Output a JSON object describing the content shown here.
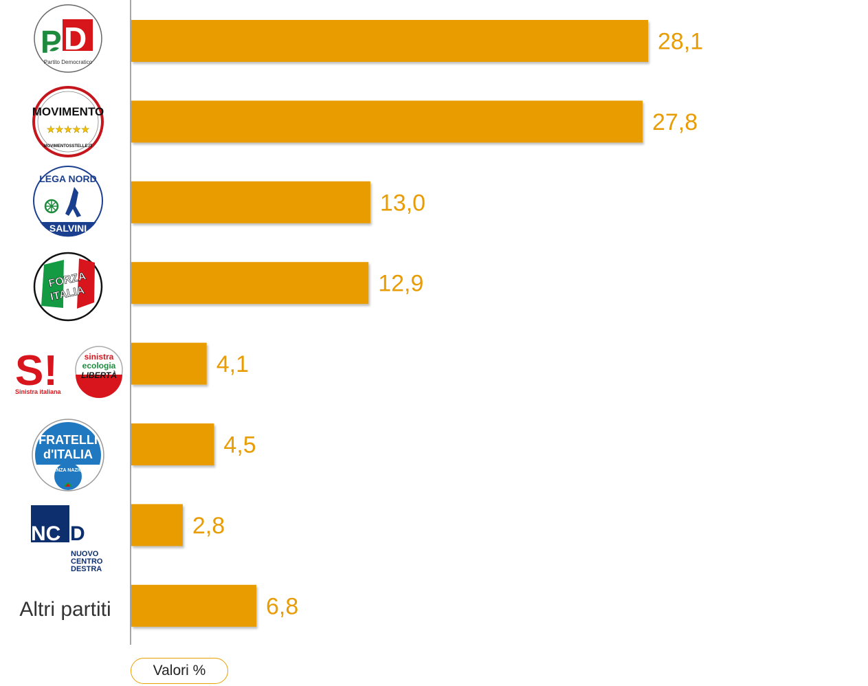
{
  "chart_data": {
    "type": "bar",
    "orientation": "horizontal",
    "categories": [
      "Partito Democratico",
      "Movimento 5 Stelle",
      "Lega Nord Salvini",
      "Forza Italia",
      "Sinistra italiana / Sinistra ecologia libertà",
      "Fratelli d'Italia - Alleanza Nazionale",
      "NCD Nuovo Centro Destra",
      "Altri partiti"
    ],
    "values": [
      28.1,
      27.8,
      13.0,
      12.9,
      4.1,
      4.5,
      2.8,
      6.8
    ],
    "value_labels": [
      "28,1",
      "27,8",
      "13,0",
      "12,9",
      "4,1",
      "4,5",
      "2,8",
      "6,8"
    ],
    "xlim": [
      0,
      35
    ],
    "grid": false,
    "bar_color": "#E89C06",
    "label_color": "#E89C06",
    "legend_label": "Valori %"
  },
  "logos": {
    "pd": {
      "main": "PD",
      "sub": "Partito Democratico"
    },
    "m5s": {
      "main": "MOVIMENTO",
      "sub": "MOVIMENTOSSTELLE.IT"
    },
    "lega": {
      "main": "LEGA NORD",
      "sub": "SALVINI"
    },
    "fi": {
      "main": "FORZA ITALIA"
    },
    "si": {
      "main": "S!",
      "sub": "Sinistra italiana"
    },
    "sel": {
      "line1": "sinistra",
      "line2": "ecologia",
      "line3": "LIBERTÀ"
    },
    "fdi": {
      "line1": "FRATELLI",
      "line2": "d'ITALIA",
      "sub": "ALLEANZA NAZIONALE"
    },
    "ncd": {
      "main": "NCD",
      "line1": "NUOVO",
      "line2": "CENTRO",
      "line3": "DESTRA"
    }
  },
  "altri_label": "Altri partiti"
}
